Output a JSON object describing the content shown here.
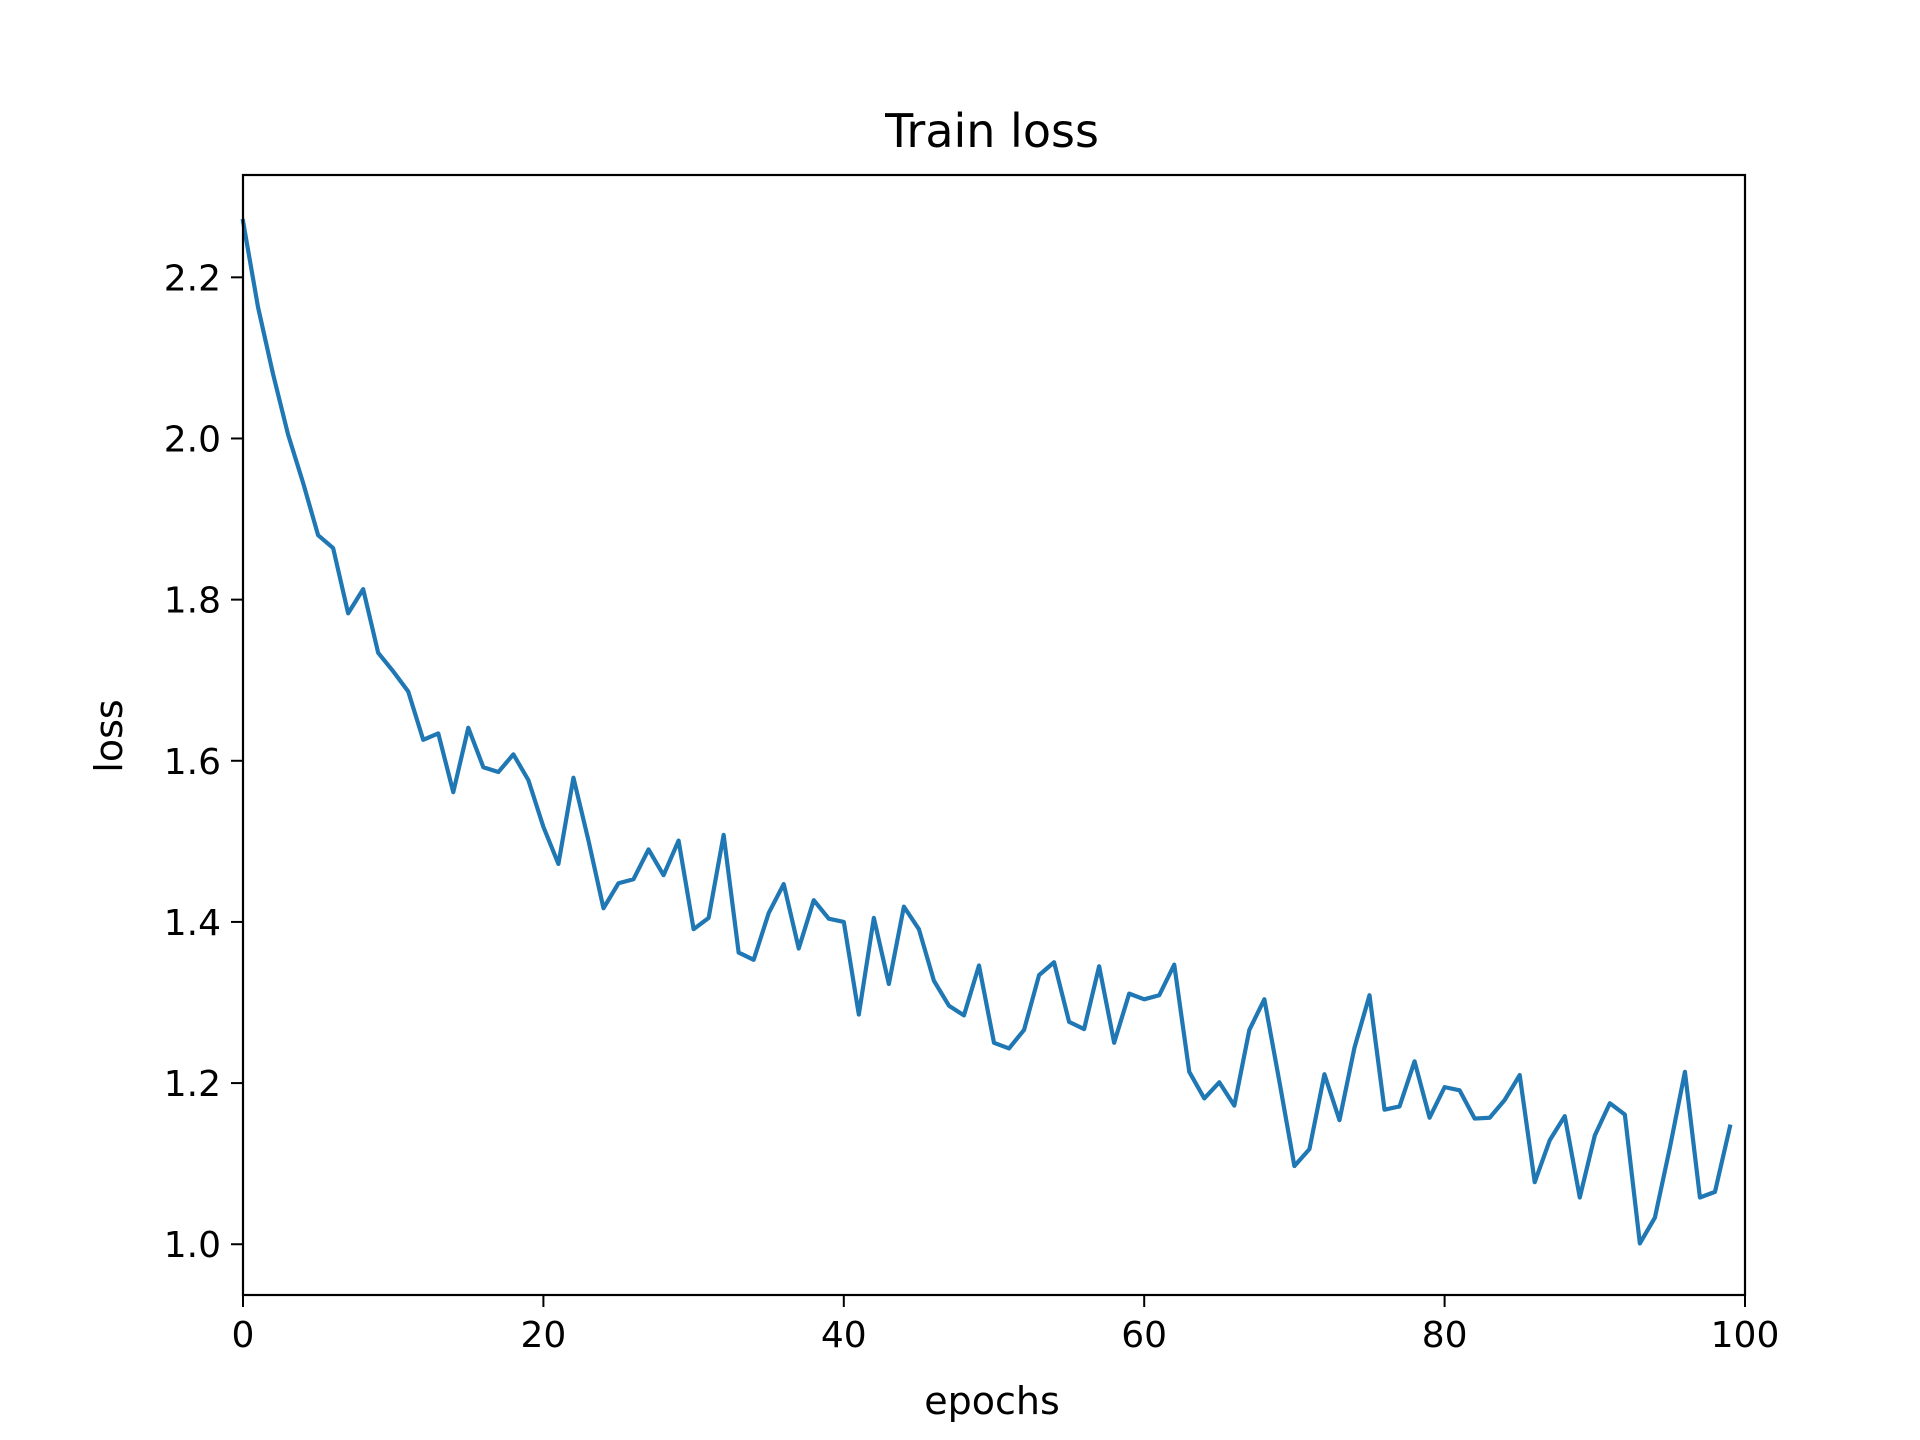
{
  "chart_data": {
    "type": "line",
    "title": "Train loss",
    "xlabel": "epochs",
    "ylabel": "loss",
    "xlim": [
      0,
      100
    ],
    "ylim": [
      0.937,
      2.327
    ],
    "xticks": [
      0,
      20,
      40,
      60,
      80,
      100
    ],
    "xtick_labels": [
      "0",
      "20",
      "40",
      "60",
      "80",
      "100"
    ],
    "yticks": [
      1.0,
      1.2,
      1.4,
      1.6,
      1.8,
      2.0,
      2.2
    ],
    "ytick_labels": [
      "1.0",
      "1.2",
      "1.4",
      "1.6",
      "1.8",
      "2.0",
      "2.2"
    ],
    "grid": false,
    "line_color": "#1f77b4",
    "series": [
      {
        "x": [
          0,
          1,
          2,
          3,
          4,
          5,
          6,
          7,
          8,
          9,
          10,
          11,
          12,
          13,
          14,
          15,
          16,
          17,
          18,
          19,
          20,
          21,
          22,
          23,
          24,
          25,
          26,
          27,
          28,
          29,
          30,
          31,
          32,
          33,
          34,
          35,
          36,
          37,
          38,
          39,
          40,
          41,
          42,
          43,
          44,
          45,
          46,
          47,
          48,
          49,
          50,
          51,
          52,
          53,
          54,
          55,
          56,
          57,
          58,
          59,
          60,
          61,
          62,
          63,
          64,
          65,
          66,
          67,
          68,
          69,
          70,
          71,
          72,
          73,
          74,
          75,
          76,
          77,
          78,
          79,
          80,
          81,
          82,
          83,
          84,
          85,
          86,
          87,
          88,
          89,
          90,
          91,
          92,
          93,
          94,
          95,
          96,
          97,
          98,
          99
        ],
        "values": [
          2.27,
          2.163,
          2.08,
          2.005,
          1.945,
          1.88,
          1.864,
          1.783,
          1.813,
          1.734,
          1.711,
          1.686,
          1.626,
          1.634,
          1.561,
          1.641,
          1.592,
          1.586,
          1.608,
          1.576,
          1.518,
          1.472,
          1.579,
          1.501,
          1.417,
          1.448,
          1.453,
          1.49,
          1.458,
          1.501,
          1.391,
          1.405,
          1.508,
          1.362,
          1.353,
          1.411,
          1.447,
          1.367,
          1.427,
          1.404,
          1.4,
          1.285,
          1.405,
          1.323,
          1.419,
          1.391,
          1.327,
          1.296,
          1.284,
          1.346,
          1.25,
          1.243,
          1.266,
          1.334,
          1.35,
          1.276,
          1.267,
          1.345,
          1.25,
          1.311,
          1.304,
          1.309,
          1.347,
          1.214,
          1.181,
          1.201,
          1.172,
          1.266,
          1.304,
          1.202,
          1.097,
          1.118,
          1.211,
          1.154,
          1.244,
          1.309,
          1.167,
          1.171,
          1.227,
          1.157,
          1.195,
          1.191,
          1.156,
          1.157,
          1.179,
          1.21,
          1.077,
          1.129,
          1.159,
          1.058,
          1.135,
          1.175,
          1.161,
          1.001,
          1.033,
          1.12,
          1.214,
          1.058,
          1.065,
          1.146
        ]
      }
    ]
  }
}
